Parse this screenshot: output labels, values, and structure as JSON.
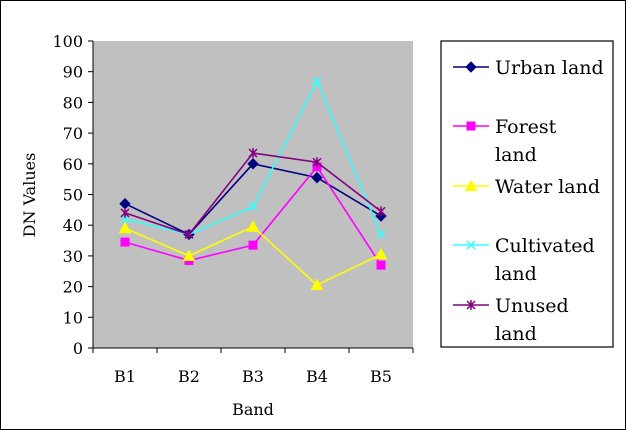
{
  "chart_data": {
    "type": "line",
    "title": "",
    "xlabel": "Band",
    "ylabel": "DN Values",
    "categories": [
      "B1",
      "B2",
      "B3",
      "B4",
      "B5"
    ],
    "ylim": [
      0,
      100
    ],
    "yticks": [
      0,
      10,
      20,
      30,
      40,
      50,
      60,
      70,
      80,
      90,
      100
    ],
    "grid": false,
    "plot_background": "#c0c0c0",
    "legend_position": "right",
    "series": [
      {
        "name": "Urban land",
        "legend_lines": [
          "Urban land"
        ],
        "color": "#000080",
        "marker": "diamond",
        "values": [
          47,
          37,
          60,
          55.5,
          43
        ]
      },
      {
        "name": "Forest land",
        "legend_lines": [
          "Forest",
          "land"
        ],
        "color": "#ff00ff",
        "marker": "square",
        "values": [
          34.5,
          28.5,
          33.5,
          59,
          27
        ]
      },
      {
        "name": "Water land",
        "legend_lines": [
          "Water land"
        ],
        "color": "#ffff00",
        "marker": "triangle",
        "values": [
          39,
          30,
          39.5,
          20.5,
          30.5
        ]
      },
      {
        "name": "Cultivated land",
        "legend_lines": [
          "Cultivated",
          "land"
        ],
        "color": "#33ffff",
        "marker": "x",
        "values": [
          42,
          37,
          46,
          87,
          37
        ]
      },
      {
        "name": "Unused land",
        "legend_lines": [
          "Unused",
          "land"
        ],
        "color": "#800080",
        "marker": "star",
        "values": [
          44,
          37,
          63.5,
          60.5,
          44.5
        ]
      }
    ]
  }
}
